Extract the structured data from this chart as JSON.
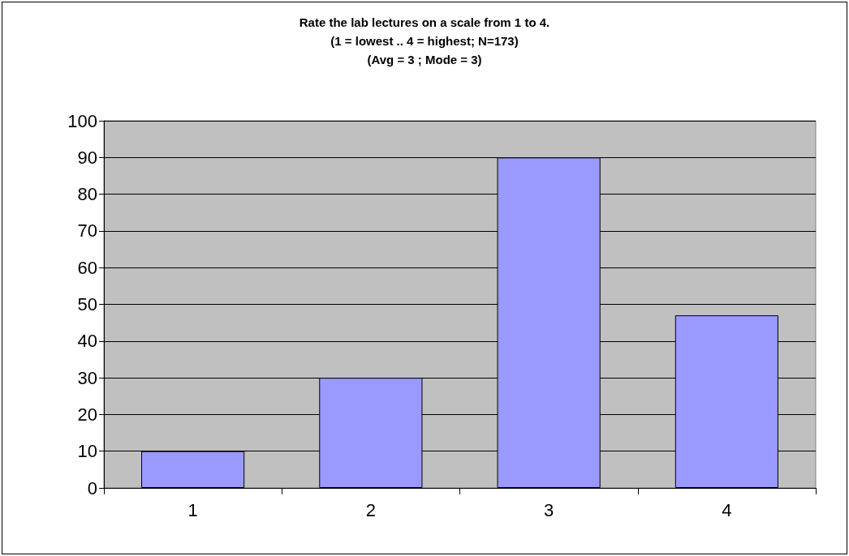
{
  "chart_data": {
    "type": "bar",
    "title": "Rate the lab lectures on a scale from 1 to 4.\n(1 = lowest .. 4 = highest; N=173)\n(Avg = 3 ; Mode = 3)",
    "categories": [
      "1",
      "2",
      "3",
      "4"
    ],
    "values": [
      10,
      30,
      90,
      47
    ],
    "color": "#9999ff",
    "ylim": [
      0,
      100
    ],
    "yticks": [
      0,
      10,
      20,
      30,
      40,
      50,
      60,
      70,
      80,
      90,
      100
    ],
    "grid": "y"
  }
}
